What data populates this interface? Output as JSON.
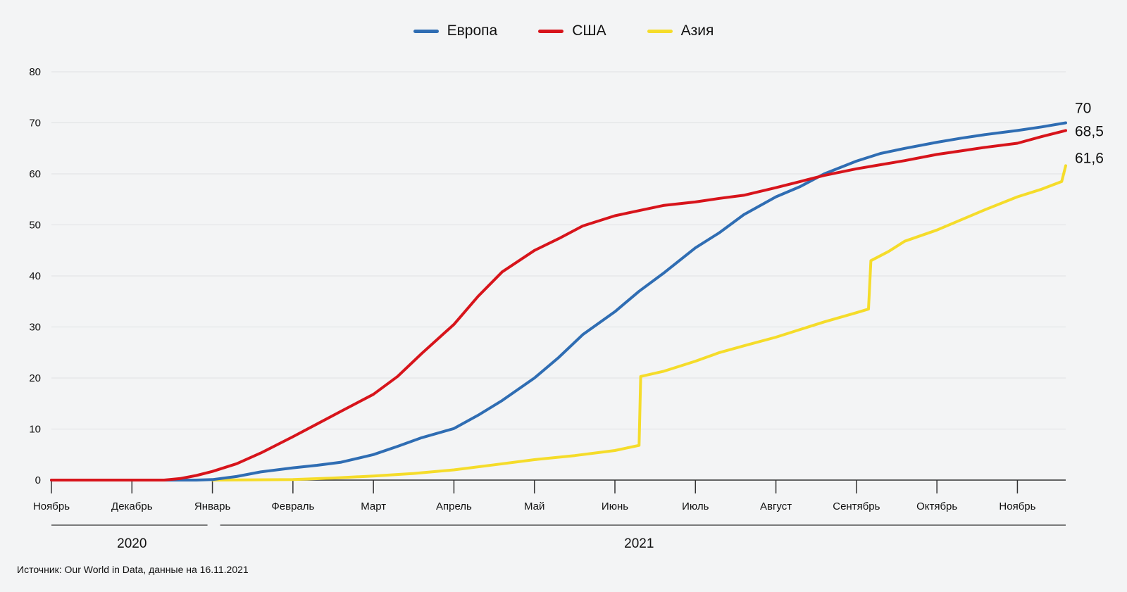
{
  "chart_data": {
    "type": "line",
    "title": "",
    "xlabel": "",
    "ylabel": "",
    "ylim": [
      0,
      80
    ],
    "yticks": [
      "0",
      "10",
      "20",
      "30",
      "40",
      "50",
      "60",
      "70",
      "80"
    ],
    "grid": true,
    "legend_position": "top-center",
    "x_tick_labels": [
      "Ноябрь",
      "Декабрь",
      "Январь",
      "Февраль",
      "Март",
      "Апрель",
      "Май",
      "Июнь",
      "Июль",
      "Август",
      "Сентябрь",
      "Октябрь",
      "Ноябрь"
    ],
    "year_labels": [
      "2020",
      "2021"
    ],
    "x_units": "months since Nov 2020",
    "series": [
      {
        "name": "Европа",
        "color": "#2f6db3",
        "end_label": "70",
        "points": [
          [
            0,
            0
          ],
          [
            1,
            0
          ],
          [
            1.5,
            0
          ],
          [
            1.8,
            0
          ],
          [
            2.0,
            0.1
          ],
          [
            2.3,
            0.7
          ],
          [
            2.6,
            1.6
          ],
          [
            3.0,
            2.4
          ],
          [
            3.3,
            2.9
          ],
          [
            3.6,
            3.5
          ],
          [
            4.0,
            5.0
          ],
          [
            4.3,
            6.6
          ],
          [
            4.6,
            8.3
          ],
          [
            5.0,
            10.1
          ],
          [
            5.3,
            12.7
          ],
          [
            5.6,
            15.6
          ],
          [
            6.0,
            20.0
          ],
          [
            6.3,
            24.0
          ],
          [
            6.6,
            28.5
          ],
          [
            7.0,
            33.0
          ],
          [
            7.3,
            37.0
          ],
          [
            7.6,
            40.5
          ],
          [
            8.0,
            45.5
          ],
          [
            8.3,
            48.5
          ],
          [
            8.6,
            52.0
          ],
          [
            9.0,
            55.5
          ],
          [
            9.3,
            57.5
          ],
          [
            9.6,
            60.0
          ],
          [
            10.0,
            62.5
          ],
          [
            10.3,
            64.0
          ],
          [
            10.6,
            65.0
          ],
          [
            11.0,
            66.2
          ],
          [
            11.3,
            67.0
          ],
          [
            11.6,
            67.7
          ],
          [
            12.0,
            68.5
          ],
          [
            12.3,
            69.2
          ],
          [
            12.6,
            70.0
          ]
        ]
      },
      {
        "name": "США",
        "color": "#d7141b",
        "end_label": "68,5",
        "points": [
          [
            0,
            0
          ],
          [
            1,
            0
          ],
          [
            1.4,
            0
          ],
          [
            1.6,
            0.3
          ],
          [
            1.8,
            0.9
          ],
          [
            2.0,
            1.7
          ],
          [
            2.3,
            3.2
          ],
          [
            2.6,
            5.3
          ],
          [
            3.0,
            8.5
          ],
          [
            3.3,
            11.0
          ],
          [
            3.6,
            13.5
          ],
          [
            4.0,
            16.8
          ],
          [
            4.3,
            20.3
          ],
          [
            4.6,
            24.8
          ],
          [
            5.0,
            30.5
          ],
          [
            5.3,
            36.0
          ],
          [
            5.6,
            40.8
          ],
          [
            6.0,
            45.0
          ],
          [
            6.3,
            47.3
          ],
          [
            6.6,
            49.8
          ],
          [
            7.0,
            51.8
          ],
          [
            7.3,
            52.8
          ],
          [
            7.6,
            53.8
          ],
          [
            8.0,
            54.5
          ],
          [
            8.3,
            55.2
          ],
          [
            8.6,
            55.8
          ],
          [
            9.0,
            57.3
          ],
          [
            9.3,
            58.5
          ],
          [
            9.6,
            59.7
          ],
          [
            10.0,
            61.0
          ],
          [
            10.3,
            61.8
          ],
          [
            10.6,
            62.6
          ],
          [
            11.0,
            63.8
          ],
          [
            11.3,
            64.5
          ],
          [
            11.6,
            65.2
          ],
          [
            12.0,
            66.0
          ],
          [
            12.3,
            67.3
          ],
          [
            12.6,
            68.5
          ]
        ]
      },
      {
        "name": "Азия",
        "color": "#f5dc2a",
        "end_label": "61,6",
        "points": [
          [
            2.0,
            0
          ],
          [
            3.0,
            0.1
          ],
          [
            3.5,
            0.4
          ],
          [
            4.0,
            0.8
          ],
          [
            4.5,
            1.3
          ],
          [
            5.0,
            2.0
          ],
          [
            5.5,
            3.0
          ],
          [
            6.0,
            4.0
          ],
          [
            6.5,
            4.8
          ],
          [
            7.0,
            5.8
          ],
          [
            7.3,
            6.8
          ],
          [
            7.32,
            20.3
          ],
          [
            7.6,
            21.3
          ],
          [
            8.0,
            23.3
          ],
          [
            8.3,
            25.0
          ],
          [
            8.6,
            26.3
          ],
          [
            9.0,
            28.0
          ],
          [
            9.3,
            29.5
          ],
          [
            9.6,
            31.0
          ],
          [
            10.0,
            32.8
          ],
          [
            10.15,
            33.5
          ],
          [
            10.18,
            43.0
          ],
          [
            10.4,
            44.8
          ],
          [
            10.6,
            46.8
          ],
          [
            11.0,
            49.0
          ],
          [
            11.3,
            51.0
          ],
          [
            11.6,
            53.0
          ],
          [
            12.0,
            55.5
          ],
          [
            12.3,
            57.0
          ],
          [
            12.55,
            58.5
          ],
          [
            12.6,
            61.6
          ]
        ]
      }
    ]
  },
  "footer": {
    "source": "Источник: Our World in Data, данные на 16.11.2021"
  }
}
